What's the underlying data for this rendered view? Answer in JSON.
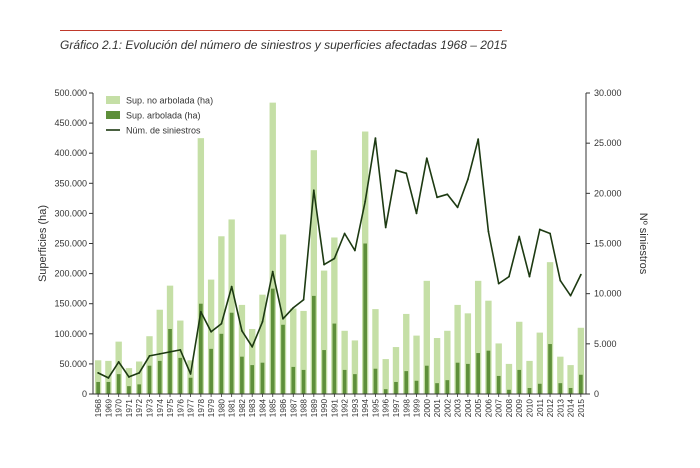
{
  "title": "Gráfico 2.1: Evolución del número de siniestros y superficies afectadas 1968 – 2015",
  "colors": {
    "no_arbolada": "#c5dfa6",
    "arbolada": "#5e8f3a",
    "siniestros": "#1d3a12",
    "title_rule": "#c0392b",
    "axis": "#333333"
  },
  "chart_data": {
    "type": "bar",
    "xlabel": "",
    "ylabel": "Superficies (ha)",
    "y2label": "Nº siniestros",
    "ylim": [
      0,
      500000
    ],
    "y2lim": [
      0,
      30000
    ],
    "yticks": [
      "0",
      "50.000",
      "100.000",
      "150.000",
      "200.000",
      "250.000",
      "300.000",
      "350.000",
      "400.000",
      "450.000",
      "500.000"
    ],
    "y2ticks": [
      "0",
      "5.000",
      "10.000",
      "15.000",
      "20.000",
      "25.000",
      "30.000"
    ],
    "grid": false,
    "legend_position": "top-left",
    "categories": [
      "1968",
      "1969",
      "1970",
      "1971",
      "1972",
      "1973",
      "1974",
      "1975",
      "1976",
      "1977",
      "1978",
      "1979",
      "1980",
      "1981",
      "1982",
      "1983",
      "1984",
      "1985",
      "1986",
      "1987",
      "1988",
      "1989",
      "1990",
      "1991",
      "1992",
      "1993",
      "1994",
      "1995",
      "1996",
      "1997",
      "1998",
      "1999",
      "2000",
      "2001",
      "2002",
      "2003",
      "2004",
      "2005",
      "2006",
      "2007",
      "2008",
      "2009",
      "2010",
      "2011",
      "2012",
      "2013",
      "2014",
      "2015"
    ],
    "series": [
      {
        "name": "Sup. no arbolada (ha)",
        "kind": "bar",
        "axis": "left",
        "values": [
          56000,
          55000,
          87000,
          43000,
          54000,
          96000,
          140000,
          180000,
          122000,
          56000,
          425000,
          190000,
          262000,
          290000,
          148000,
          108000,
          165000,
          484000,
          265000,
          142000,
          138000,
          405000,
          205000,
          260000,
          105000,
          89000,
          436000,
          141000,
          58000,
          78000,
          133000,
          97000,
          188000,
          93000,
          105000,
          148000,
          134000,
          188000,
          155000,
          84000,
          50000,
          120000,
          55000,
          102000,
          219000,
          62000,
          48000,
          110000
        ]
      },
      {
        "name": "Sup. arbolada (ha)",
        "kind": "bar",
        "axis": "left",
        "values": [
          20000,
          20000,
          33000,
          13000,
          16000,
          47000,
          55000,
          108000,
          60000,
          27000,
          150000,
          75000,
          100000,
          135000,
          62000,
          48000,
          52000,
          175000,
          115000,
          45000,
          40000,
          163000,
          73000,
          117000,
          40000,
          33000,
          250000,
          42000,
          8000,
          20000,
          38000,
          22000,
          47000,
          18000,
          23000,
          52000,
          50000,
          68000,
          72000,
          30000,
          7000,
          40000,
          10000,
          17000,
          83000,
          18000,
          10000,
          32000
        ]
      },
      {
        "name": "Núm. de siniestros",
        "kind": "line",
        "axis": "right",
        "values": [
          2100,
          1600,
          3200,
          1700,
          2100,
          3800,
          4000,
          4200,
          4400,
          2000,
          8200,
          6200,
          7000,
          10700,
          6300,
          4700,
          7200,
          12200,
          7500,
          8600,
          9400,
          20300,
          12900,
          13500,
          16000,
          14300,
          19200,
          25500,
          16600,
          22300,
          22000,
          18000,
          23500,
          19600,
          19900,
          18600,
          21400,
          25400,
          16200,
          11000,
          11700,
          15700,
          11700,
          16400,
          16000,
          11300,
          9800,
          11900
        ]
      }
    ]
  }
}
